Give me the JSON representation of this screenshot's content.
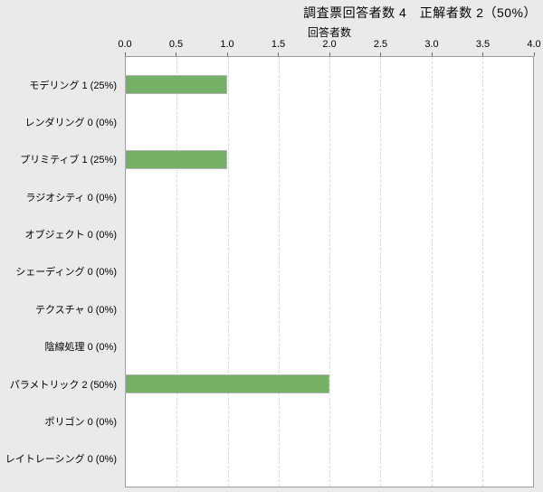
{
  "title": "調査票回答者数 4　正解者数 2（50%）",
  "axis": {
    "title": "回答者数",
    "ticks": [
      "0.0",
      "0.5",
      "1.0",
      "1.5",
      "2.0",
      "2.5",
      "3.0",
      "3.5",
      "4.0"
    ],
    "min": 0,
    "max": 4
  },
  "chart_data": {
    "type": "bar",
    "orientation": "horizontal",
    "title": "調査票回答者数 4　正解者数 2（50%）",
    "xlabel": "回答者数",
    "xlim": [
      0,
      4
    ],
    "x_tick_step": 0.5,
    "grid": "vertical-dashed",
    "legend": "none",
    "categories": [
      "モデリング",
      "レンダリング",
      "プリミティブ",
      "ラジオシティ",
      "オブジェクト",
      "シェーディング",
      "テクスチャ",
      "陰線処理",
      "パラメトリック",
      "ポリゴン",
      "レイトレーシング"
    ],
    "values": [
      1,
      0,
      1,
      0,
      0,
      0,
      0,
      0,
      2,
      0,
      0
    ],
    "percentages": [
      25,
      0,
      25,
      0,
      0,
      0,
      0,
      0,
      50,
      0,
      0
    ],
    "category_labels": [
      "モデリング 1 (25%)",
      "レンダリング 0 (0%)",
      "プリミティブ 1 (25%)",
      "ラジオシティ 0 (0%)",
      "オブジェクト 0 (0%)",
      "シェーディング 0 (0%)",
      "テクスチャ 0 (0%)",
      "陰線処理 0 (0%)",
      "パラメトリック 2 (50%)",
      "ポリゴン 0 (0%)",
      "レイトレーシング 0 (0%)"
    ]
  },
  "colors": {
    "background": "#eaeaea",
    "plot_background": "#ffffff",
    "plot_border": "#9a9a9a",
    "gridline": "#d9d9d9",
    "tick_mark": "#666666",
    "bar_fill": "#74b167",
    "bar_border": "#b3b3b3",
    "text": "#000000"
  }
}
